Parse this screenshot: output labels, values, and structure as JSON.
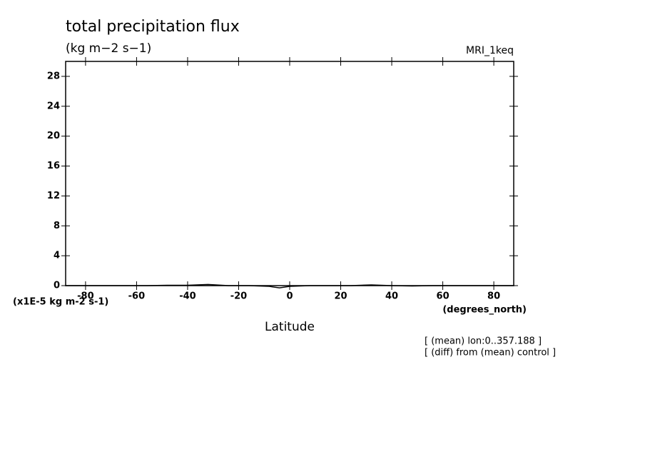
{
  "chart_data": {
    "type": "line",
    "title": "total precipitation flux",
    "subtitle": "(kg m−2 s−1)",
    "dataset": "MRI_1keq",
    "x_label": "Latitude",
    "x_units": "(degrees_north)",
    "y_units": "(x1E-5 kg m-2 s-1)",
    "annotations": [
      "[ (mean) lon:0..357.188 ]",
      "[ (diff) from (mean) control ]"
    ],
    "x": [
      -88,
      -80,
      -72,
      -64,
      -56,
      -48,
      -40,
      -32,
      -24,
      -16,
      -8,
      -4,
      0,
      8,
      16,
      24,
      32,
      40,
      48,
      56,
      64,
      72,
      80,
      88
    ],
    "series": [
      {
        "name": "MRI_1keq",
        "color": "#000000",
        "values": [
          0,
          0,
          0,
          0,
          0,
          0.05,
          0.05,
          0.15,
          0,
          0,
          -0.1,
          -0.3,
          -0.1,
          0,
          0,
          0,
          0.1,
          0,
          -0.05,
          0,
          0,
          0,
          0,
          0
        ]
      }
    ],
    "xlim": [
      -87.8,
      87.8
    ],
    "ylim": [
      0,
      30
    ],
    "xticks": [
      -80,
      -60,
      -40,
      -20,
      0,
      20,
      40,
      60,
      80
    ],
    "yticks": [
      0,
      4,
      8,
      12,
      16,
      20,
      24,
      28
    ]
  }
}
